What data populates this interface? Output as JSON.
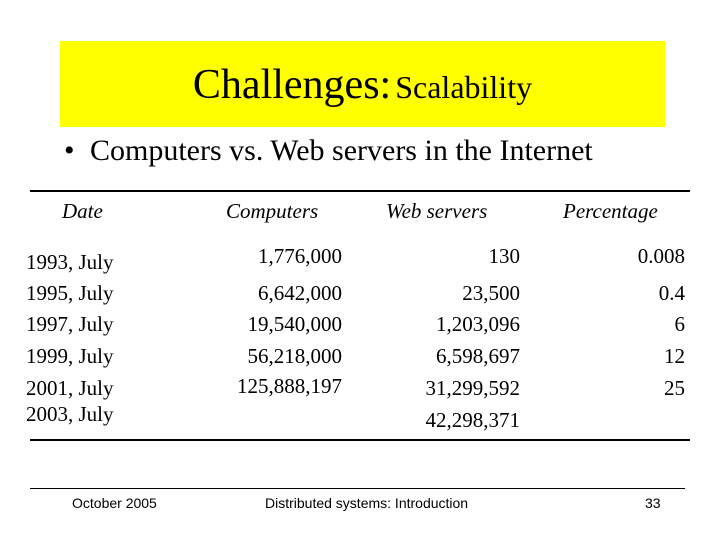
{
  "title": {
    "part1": "Challenges:",
    "part2": "Scalability"
  },
  "bullet": {
    "symbol": "•",
    "text": "Computers vs. Web servers in the Internet"
  },
  "table": {
    "headers": [
      "Date",
      "Computers",
      "Web servers",
      "Percentage"
    ],
    "dates": [
      "1993, July",
      "1995, July",
      "1997, July",
      "1999, July",
      "2001, July",
      "2003, July"
    ],
    "computers": [
      "1,776,000",
      "6,642,000",
      "19,540,000",
      "56,218,000",
      "125,888,197"
    ],
    "web_servers": [
      "130",
      "23,500",
      "1,203,096",
      "6,598,697",
      "31,299,592",
      "42,298,371"
    ],
    "percentage": [
      "0.008",
      "0.4",
      "6",
      "12",
      "25"
    ]
  },
  "footer": {
    "date": "October 2005",
    "course": "Distributed systems: Introduction",
    "page": "33"
  },
  "colors": {
    "title_band": "#ffff00"
  }
}
